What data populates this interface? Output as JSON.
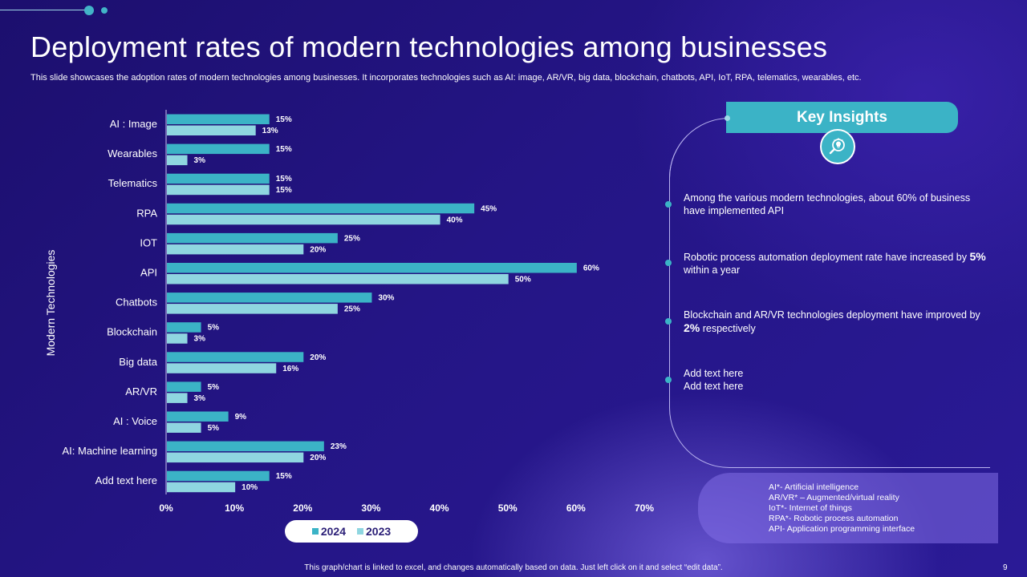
{
  "title": "Deployment rates of modern technologies among businesses",
  "subtitle": "This slide showcases the adoption rates of modern technologies among businesses. It incorporates technologies such as AI: image, AR/VR, big data, blockchain, chatbots, API, IoT, RPA, telematics, wearables, etc.",
  "chart_data": {
    "type": "bar",
    "orientation": "horizontal",
    "categories": [
      "AI : Image",
      "Wearables",
      "Telematics",
      "RPA",
      "IOT",
      "API",
      "Chatbots",
      "Blockchain",
      "Big data",
      "AR/VR",
      "AI : Voice",
      "AI: Machine learning",
      "Add text here"
    ],
    "series": [
      {
        "name": "2024",
        "color": "#3bb3c6",
        "values": [
          15,
          15,
          15,
          45,
          25,
          60,
          30,
          5,
          20,
          5,
          9,
          23,
          15
        ]
      },
      {
        "name": "2023",
        "color": "#8fd6e0",
        "values": [
          13,
          3,
          15,
          40,
          20,
          50,
          25,
          3,
          16,
          3,
          5,
          20,
          10
        ]
      }
    ],
    "value_labels_2024": [
      "15%",
      "15%",
      "15%",
      "45%",
      "25%",
      "60%",
      "30%",
      "5%",
      "20%",
      "5%",
      "9%",
      "23%",
      "15%"
    ],
    "value_labels_2023": [
      "13%",
      "3%",
      "15%",
      "40%",
      "20%",
      "50%",
      "25%",
      "3%",
      "16%",
      "3%",
      "5%",
      "20%",
      "10%"
    ],
    "xlim": [
      0,
      70
    ],
    "xticks": [
      "0%",
      "10%",
      "20%",
      "30%",
      "40%",
      "50%",
      "60%",
      "70%"
    ],
    "ylabel": "Modern Technologies",
    "xlabel": "",
    "legend": [
      "2024",
      "2023"
    ],
    "legend_position": "bottom",
    "grid": false
  },
  "insights": {
    "header": "Key Insights",
    "icon": "magnifier-lightbulb-icon",
    "items": [
      {
        "text": "Among the various modern technologies, about 60% of business have implemented API",
        "pre": "",
        "bold": "",
        "post": ""
      },
      {
        "text": "",
        "pre": "Robotic process automation deployment rate have increased by ",
        "bold": "5%",
        "post": " within a year"
      },
      {
        "text": "",
        "pre": "Blockchain and AR/VR technologies deployment have improved by ",
        "bold": "2%",
        "post": " respectively"
      },
      {
        "text": "Add text here",
        "line2": "Add text here"
      }
    ]
  },
  "abbreviations": [
    "AI*- Artificial intelligence",
    "AR/VR* – Augmented/virtual reality",
    "IoT*- Internet of things",
    "RPA*- Robotic process automation",
    "API- Application programming interface"
  ],
  "footer": "This graph/chart is linked to excel, and changes automatically based on data. Just left click on it and select “edit data”.",
  "page_number": "9"
}
